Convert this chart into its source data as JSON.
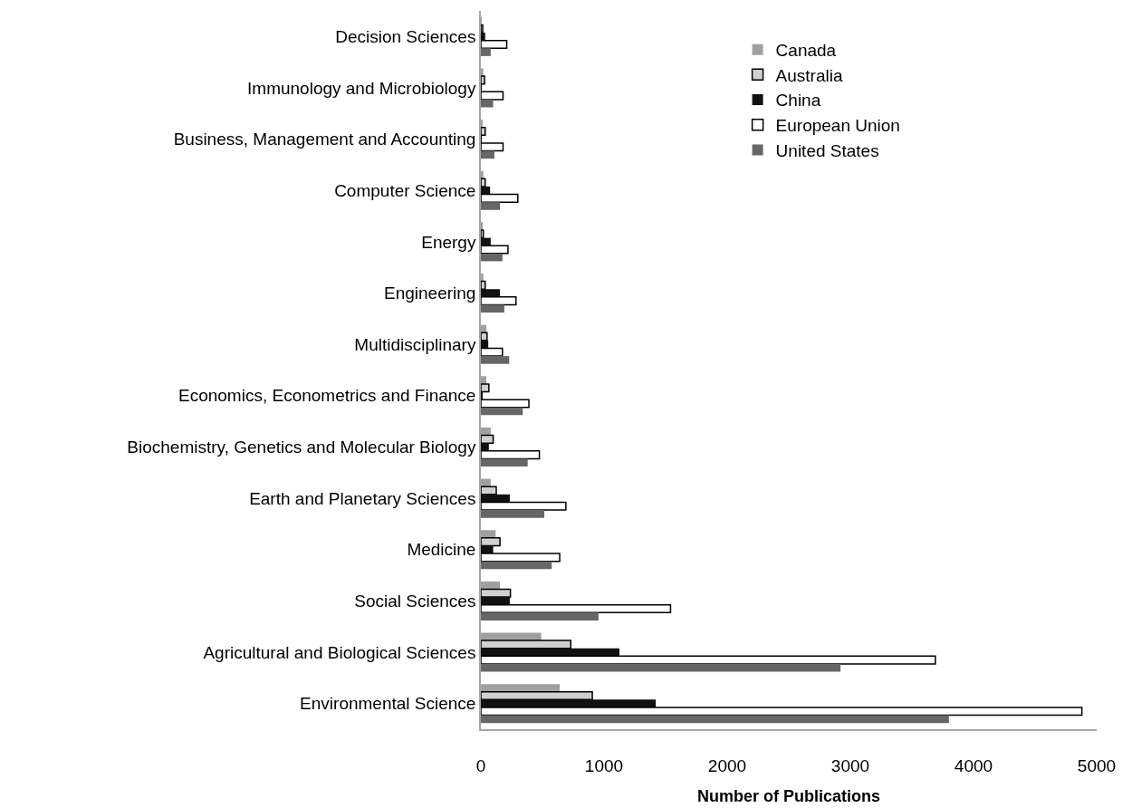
{
  "chart_data": {
    "type": "bar",
    "orientation": "horizontal",
    "xlabel": "Number of Publications",
    "categories": [
      "Decision Sciences",
      "Immunology and Microbiology",
      "Business, Management and Accounting",
      "Computer Science",
      "Energy",
      "Engineering",
      "Multidisciplinary",
      "Economics, Econometrics and Finance",
      "Biochemistry, Genetics and Molecular Biology",
      "Earth and Planetary Sciences",
      "Medicine",
      "Social Sciences",
      "Agricultural and Biological Sciences",
      "Environmental Science"
    ],
    "series": [
      {
        "name": "Canada",
        "color": "#a0a0a0",
        "values": [
          5,
          20,
          15,
          20,
          10,
          20,
          45,
          45,
          80,
          80,
          120,
          155,
          490,
          640
        ]
      },
      {
        "name": "Australia",
        "color": "#d0d0d0",
        "values": [
          15,
          30,
          35,
          35,
          20,
          35,
          50,
          65,
          100,
          125,
          155,
          240,
          730,
          905
        ]
      },
      {
        "name": "China",
        "color": "#111111",
        "values": [
          35,
          5,
          5,
          75,
          80,
          155,
          60,
          10,
          65,
          235,
          100,
          235,
          1125,
          1420
        ]
      },
      {
        "name": "European Union",
        "color": "#ffffff",
        "values": [
          210,
          180,
          180,
          300,
          220,
          285,
          175,
          390,
          475,
          690,
          640,
          1540,
          3690,
          4880
        ]
      },
      {
        "name": "United States",
        "color": "#666666",
        "values": [
          80,
          100,
          110,
          155,
          175,
          190,
          230,
          340,
          380,
          515,
          575,
          955,
          2920,
          3800
        ]
      }
    ],
    "xlim": [
      0,
      5000
    ],
    "xticks": [
      0,
      1000,
      2000,
      3000,
      4000,
      5000
    ],
    "grid": false,
    "legend": "top right"
  }
}
